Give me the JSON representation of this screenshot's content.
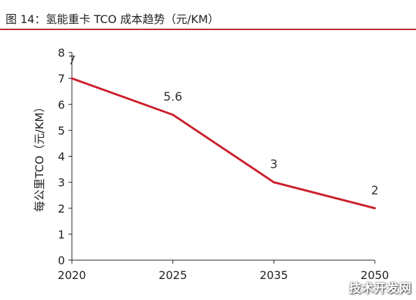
{
  "figure": {
    "title": "图 14：氢能重卡 TCO 成本趋势（元/KM）"
  },
  "watermark": "技术开发网",
  "colors": {
    "line": "#cc1f2a",
    "title_rule": "#c0262d",
    "axis": "#222222"
  },
  "chart_data": {
    "type": "line",
    "title": "",
    "xlabel": "",
    "ylabel": "每公里TCO（元/KM）",
    "categories": [
      "2020",
      "2025",
      "2035",
      "2050"
    ],
    "series": [
      {
        "values": [
          7,
          5.6,
          3,
          2
        ],
        "data_labels": [
          "7",
          "5.6",
          "3",
          "2"
        ]
      }
    ],
    "ylim": [
      0,
      8
    ],
    "yticks": [
      "0",
      "1",
      "2",
      "3",
      "4",
      "5",
      "6",
      "7",
      "8"
    ],
    "grid": false,
    "legend": "none"
  }
}
